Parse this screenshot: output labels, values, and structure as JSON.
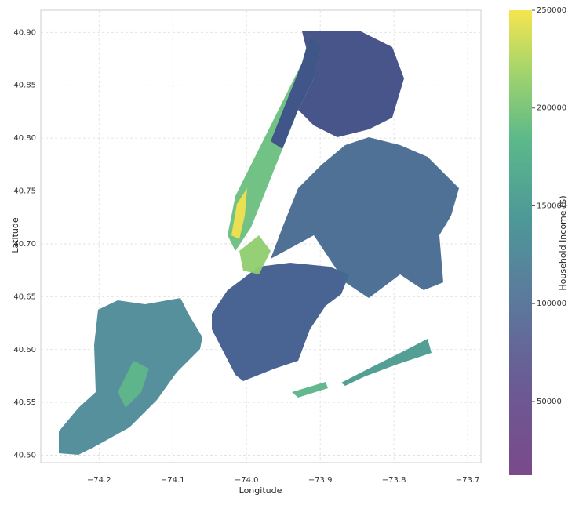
{
  "chart_data": {
    "type": "choropleth",
    "xlabel": "Longitude",
    "ylabel": "Latitude",
    "xlim": [
      -74.279,
      -73.682
    ],
    "ylim": [
      40.493,
      40.921
    ],
    "xticks": [
      {
        "value": -74.2,
        "label": "−74.2"
      },
      {
        "value": -74.1,
        "label": "−74.1"
      },
      {
        "value": -74.0,
        "label": "−74.0"
      },
      {
        "value": -73.9,
        "label": "−73.9"
      },
      {
        "value": -73.8,
        "label": "−73.8"
      },
      {
        "value": -73.7,
        "label": "−73.7"
      }
    ],
    "yticks": [
      {
        "value": 40.5,
        "label": "40.50"
      },
      40.55,
      {
        "value": 40.6,
        "label": "40.60"
      },
      40.65,
      {
        "value": 40.7,
        "label": "40.70"
      },
      40.75,
      {
        "value": 40.8,
        "label": "40.80"
      },
      40.85,
      {
        "value": 40.9,
        "label": "40.90"
      }
    ],
    "grid": true,
    "colorbar": {
      "label": "Household Income ($)",
      "lim": [
        12300,
        250000
      ],
      "ticks": [
        50000,
        100000,
        150000,
        200000,
        250000
      ]
    }
  }
}
